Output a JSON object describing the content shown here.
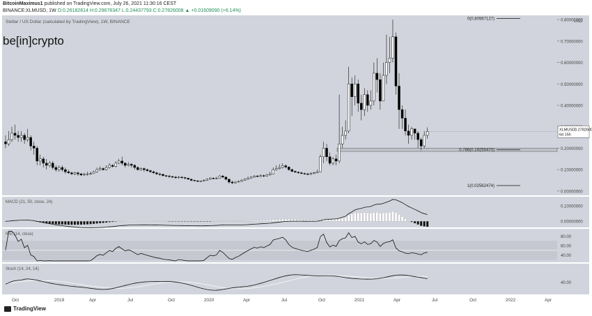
{
  "header": {
    "author": "BitcoinMaximus1",
    "published": "published on TradingView.com, July 26, 2021 11:30:16 CEST",
    "symbol_line": "BINANCE:XLMUSD, 1W",
    "ohlc": "O:0.26182814 H:0.29678347 L:0.24437793 C:0.27826008",
    "change": "▲ +0.01609090 (+6.14%)"
  },
  "footer": {
    "brand": "TradingView"
  },
  "colors": {
    "panel_bg": "#d1d4dc",
    "candle_up": "#ffffff",
    "candle_down": "#000000",
    "line": "#000000",
    "rsi_band": "#c5c8d0",
    "support_box": "#c0c3cb"
  },
  "chart_data": [
    {
      "type": "candlestick",
      "title": "Stellar / US Dollar (calculated by TradingView), 1W, BINANCE",
      "logo_text": "be[in]crypto",
      "unit_label": "USD",
      "ylim": [
        -0.02,
        0.82
      ],
      "y_ticks": [
        "0.00000000",
        "0.10000000",
        "0.20000000",
        "0.30000000",
        "0.40000000",
        "0.50000000",
        "0.60000000",
        "0.70000000",
        "0.80000000"
      ],
      "x_ticks": [
        "Oct",
        "2019",
        "Apr",
        "Jul",
        "Oct",
        "2020",
        "Apr",
        "Jul",
        "Oct",
        "2021",
        "Apr",
        "Jul",
        "Oct",
        "2022",
        "Apr"
      ],
      "fib_levels": [
        {
          "label": "0(0.80567127)",
          "value": 0.80567127
        },
        {
          "label": "0.786(0.19255470)",
          "value": 0.1925547
        },
        {
          "label": "1(0.02562474)",
          "value": 0.02562474
        }
      ],
      "support_zone": [
        0.185,
        0.2
      ],
      "price_label": {
        "symbol": "XLMUSD",
        "value": "0.27826008",
        "countdown": "6d 15h"
      },
      "candles": [
        [
          0.23,
          0.22,
          0.26,
          0.2
        ],
        [
          0.22,
          0.24,
          0.28,
          0.21
        ],
        [
          0.24,
          0.27,
          0.3,
          0.23
        ],
        [
          0.27,
          0.26,
          0.31,
          0.24
        ],
        [
          0.26,
          0.25,
          0.28,
          0.23
        ],
        [
          0.25,
          0.26,
          0.28,
          0.23
        ],
        [
          0.26,
          0.24,
          0.27,
          0.22
        ],
        [
          0.24,
          0.25,
          0.29,
          0.23
        ],
        [
          0.25,
          0.21,
          0.26,
          0.19
        ],
        [
          0.21,
          0.2,
          0.23,
          0.17
        ],
        [
          0.2,
          0.14,
          0.21,
          0.12
        ],
        [
          0.14,
          0.15,
          0.17,
          0.12
        ],
        [
          0.15,
          0.13,
          0.16,
          0.11
        ],
        [
          0.13,
          0.12,
          0.15,
          0.1
        ],
        [
          0.12,
          0.13,
          0.14,
          0.11
        ],
        [
          0.13,
          0.11,
          0.14,
          0.1
        ],
        [
          0.11,
          0.1,
          0.12,
          0.09
        ],
        [
          0.1,
          0.11,
          0.12,
          0.09
        ],
        [
          0.11,
          0.1,
          0.12,
          0.09
        ],
        [
          0.1,
          0.09,
          0.11,
          0.08
        ],
        [
          0.09,
          0.085,
          0.1,
          0.08
        ],
        [
          0.085,
          0.08,
          0.09,
          0.075
        ],
        [
          0.08,
          0.085,
          0.09,
          0.075
        ],
        [
          0.085,
          0.08,
          0.09,
          0.07
        ],
        [
          0.08,
          0.075,
          0.085,
          0.07
        ],
        [
          0.075,
          0.078,
          0.085,
          0.07
        ],
        [
          0.078,
          0.08,
          0.09,
          0.072
        ],
        [
          0.08,
          0.082,
          0.09,
          0.075
        ],
        [
          0.082,
          0.09,
          0.095,
          0.08
        ],
        [
          0.09,
          0.1,
          0.11,
          0.085
        ],
        [
          0.1,
          0.105,
          0.115,
          0.095
        ],
        [
          0.105,
          0.1,
          0.11,
          0.095
        ],
        [
          0.1,
          0.11,
          0.12,
          0.095
        ],
        [
          0.11,
          0.12,
          0.13,
          0.105
        ],
        [
          0.12,
          0.115,
          0.125,
          0.11
        ],
        [
          0.115,
          0.13,
          0.14,
          0.11
        ],
        [
          0.13,
          0.14,
          0.15,
          0.125
        ],
        [
          0.14,
          0.13,
          0.16,
          0.12
        ],
        [
          0.13,
          0.12,
          0.135,
          0.11
        ],
        [
          0.12,
          0.125,
          0.135,
          0.115
        ],
        [
          0.125,
          0.12,
          0.13,
          0.11
        ],
        [
          0.12,
          0.11,
          0.125,
          0.1
        ],
        [
          0.11,
          0.1,
          0.115,
          0.095
        ],
        [
          0.1,
          0.105,
          0.11,
          0.095
        ],
        [
          0.105,
          0.1,
          0.11,
          0.09
        ],
        [
          0.1,
          0.095,
          0.105,
          0.09
        ],
        [
          0.095,
          0.09,
          0.1,
          0.085
        ],
        [
          0.09,
          0.085,
          0.095,
          0.08
        ],
        [
          0.085,
          0.08,
          0.09,
          0.075
        ],
        [
          0.08,
          0.078,
          0.085,
          0.07
        ],
        [
          0.078,
          0.072,
          0.08,
          0.068
        ],
        [
          0.072,
          0.07,
          0.075,
          0.065
        ],
        [
          0.07,
          0.068,
          0.075,
          0.062
        ],
        [
          0.068,
          0.065,
          0.07,
          0.06
        ],
        [
          0.065,
          0.062,
          0.07,
          0.058
        ],
        [
          0.062,
          0.065,
          0.07,
          0.058
        ],
        [
          0.065,
          0.063,
          0.068,
          0.058
        ],
        [
          0.063,
          0.06,
          0.066,
          0.055
        ],
        [
          0.06,
          0.055,
          0.062,
          0.052
        ],
        [
          0.055,
          0.05,
          0.058,
          0.046
        ],
        [
          0.05,
          0.048,
          0.053,
          0.045
        ],
        [
          0.048,
          0.045,
          0.05,
          0.042
        ],
        [
          0.045,
          0.047,
          0.05,
          0.042
        ],
        [
          0.047,
          0.05,
          0.055,
          0.045
        ],
        [
          0.05,
          0.055,
          0.06,
          0.048
        ],
        [
          0.055,
          0.06,
          0.065,
          0.052
        ],
        [
          0.06,
          0.058,
          0.063,
          0.055
        ],
        [
          0.058,
          0.06,
          0.066,
          0.055
        ],
        [
          0.06,
          0.07,
          0.075,
          0.058
        ],
        [
          0.07,
          0.065,
          0.075,
          0.06
        ],
        [
          0.065,
          0.055,
          0.068,
          0.05
        ],
        [
          0.055,
          0.042,
          0.058,
          0.035
        ],
        [
          0.042,
          0.038,
          0.048,
          0.032
        ],
        [
          0.038,
          0.042,
          0.046,
          0.035
        ],
        [
          0.042,
          0.045,
          0.05,
          0.04
        ],
        [
          0.045,
          0.05,
          0.055,
          0.043
        ],
        [
          0.05,
          0.055,
          0.06,
          0.048
        ],
        [
          0.055,
          0.06,
          0.068,
          0.053
        ],
        [
          0.06,
          0.065,
          0.07,
          0.058
        ],
        [
          0.065,
          0.07,
          0.075,
          0.062
        ],
        [
          0.07,
          0.068,
          0.075,
          0.065
        ],
        [
          0.068,
          0.072,
          0.078,
          0.065
        ],
        [
          0.072,
          0.07,
          0.076,
          0.066
        ],
        [
          0.07,
          0.075,
          0.08,
          0.068
        ],
        [
          0.075,
          0.08,
          0.09,
          0.072
        ],
        [
          0.08,
          0.1,
          0.11,
          0.078
        ],
        [
          0.1,
          0.105,
          0.12,
          0.095
        ],
        [
          0.105,
          0.11,
          0.125,
          0.1
        ],
        [
          0.11,
          0.118,
          0.13,
          0.105
        ],
        [
          0.118,
          0.112,
          0.125,
          0.105
        ],
        [
          0.112,
          0.1,
          0.115,
          0.095
        ],
        [
          0.1,
          0.092,
          0.105,
          0.088
        ],
        [
          0.092,
          0.088,
          0.096,
          0.085
        ],
        [
          0.088,
          0.085,
          0.092,
          0.08
        ],
        [
          0.085,
          0.082,
          0.09,
          0.078
        ],
        [
          0.082,
          0.08,
          0.086,
          0.076
        ],
        [
          0.08,
          0.078,
          0.085,
          0.074
        ],
        [
          0.078,
          0.082,
          0.088,
          0.075
        ],
        [
          0.082,
          0.085,
          0.09,
          0.078
        ],
        [
          0.085,
          0.09,
          0.1,
          0.082
        ],
        [
          0.09,
          0.16,
          0.17,
          0.088
        ],
        [
          0.16,
          0.2,
          0.23,
          0.13
        ],
        [
          0.2,
          0.16,
          0.22,
          0.14
        ],
        [
          0.16,
          0.13,
          0.18,
          0.12
        ],
        [
          0.13,
          0.15,
          0.16,
          0.12
        ],
        [
          0.15,
          0.14,
          0.17,
          0.12
        ],
        [
          0.14,
          0.22,
          0.45,
          0.13
        ],
        [
          0.22,
          0.26,
          0.3,
          0.2
        ],
        [
          0.26,
          0.28,
          0.33,
          0.24
        ],
        [
          0.28,
          0.5,
          0.58,
          0.27
        ],
        [
          0.5,
          0.44,
          0.53,
          0.35
        ],
        [
          0.44,
          0.5,
          0.54,
          0.4
        ],
        [
          0.5,
          0.41,
          0.52,
          0.37
        ],
        [
          0.41,
          0.38,
          0.45,
          0.33
        ],
        [
          0.38,
          0.45,
          0.48,
          0.35
        ],
        [
          0.45,
          0.4,
          0.47,
          0.37
        ],
        [
          0.4,
          0.42,
          0.47,
          0.38
        ],
        [
          0.42,
          0.55,
          0.6,
          0.4
        ],
        [
          0.55,
          0.52,
          0.62,
          0.46
        ],
        [
          0.52,
          0.42,
          0.55,
          0.38
        ],
        [
          0.42,
          0.54,
          0.6,
          0.42
        ],
        [
          0.54,
          0.6,
          0.73,
          0.5
        ],
        [
          0.6,
          0.62,
          0.72,
          0.55
        ],
        [
          0.62,
          0.72,
          0.8,
          0.6
        ],
        [
          0.72,
          0.49,
          0.74,
          0.45
        ],
        [
          0.49,
          0.38,
          0.55,
          0.29
        ],
        [
          0.38,
          0.34,
          0.4,
          0.29
        ],
        [
          0.34,
          0.28,
          0.38,
          0.26
        ],
        [
          0.28,
          0.26,
          0.31,
          0.22
        ],
        [
          0.26,
          0.29,
          0.3,
          0.24
        ],
        [
          0.29,
          0.27,
          0.29,
          0.24
        ],
        [
          0.27,
          0.24,
          0.28,
          0.2
        ],
        [
          0.24,
          0.21,
          0.25,
          0.19
        ],
        [
          0.21,
          0.26,
          0.28,
          0.2
        ],
        [
          0.26,
          0.278,
          0.297,
          0.244
        ]
      ]
    },
    {
      "type": "histogram_line",
      "title": "MACD (21, 50, close, 24)",
      "y_ticks": [
        "0.00000000",
        "0.10000000"
      ]
    },
    {
      "type": "line",
      "title": "RSI (14, close)",
      "y_ticks": [
        "40.00",
        "60.00",
        "80.00"
      ]
    },
    {
      "type": "line",
      "title": "Stoch (14, 24, 14)",
      "y_ticks": [
        "40.00"
      ]
    }
  ]
}
